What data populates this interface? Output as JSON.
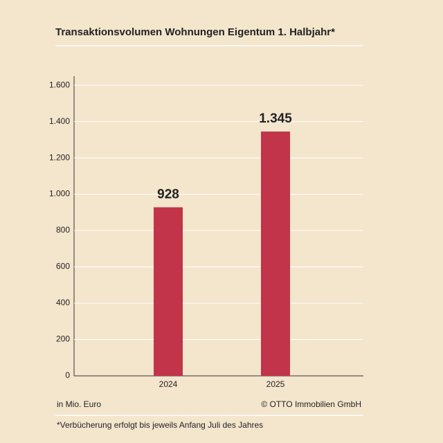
{
  "chart_data": {
    "type": "bar",
    "title": "Transaktionsvolumen Wohnungen Eigentum 1. Halbjahr*",
    "categories": [
      "2024",
      "2025"
    ],
    "values": [
      928,
      1345
    ],
    "value_labels": [
      "928",
      "1.345"
    ],
    "color": "#c1344a",
    "ylim": [
      0,
      1650
    ],
    "yticks": [
      0,
      200,
      400,
      600,
      800,
      {
        "value": 1000,
        "label": "1.000"
      },
      {
        "value": 1200,
        "label": "1.200"
      },
      {
        "value": 1400,
        "label": "1.400"
      },
      {
        "value": 1600,
        "label": "1.600"
      }
    ],
    "grid": true,
    "y_axis_unit": "in Mio. Euro",
    "source": "© OTTO Immobilien GmbH",
    "footnote": "*Verbücherung erfolgt bis jeweils Anfang Juli des Jahres"
  }
}
